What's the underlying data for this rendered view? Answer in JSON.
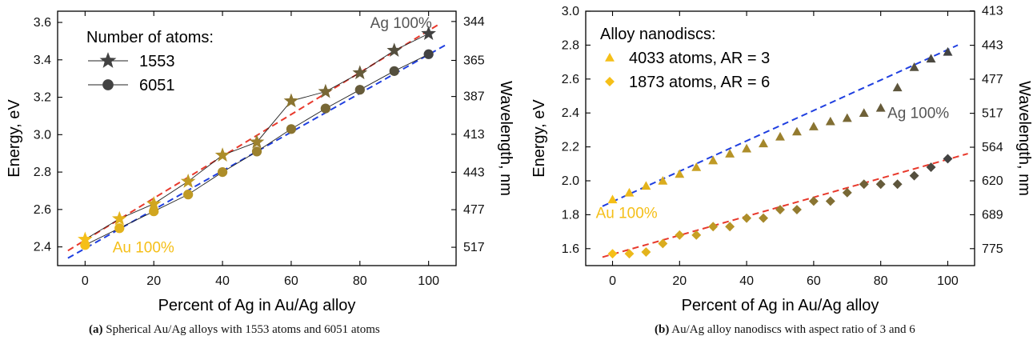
{
  "captions": [
    {
      "label": "(a)",
      "text": "Spherical Au/Ag alloys with 1553 atoms and 6051 atoms"
    },
    {
      "label": "(b)",
      "text": "Au/Ag alloy nanodiscs with aspect ratio of 3 and 6"
    }
  ],
  "chart_data": [
    {
      "type": "scatter",
      "id": "a",
      "xlabel": "Percent of Ag in Au/Ag alloy",
      "ylabel": "Energy, eV",
      "y2label": "Wavelength, nm",
      "xlim": [
        -8,
        108
      ],
      "ylim": [
        2.3,
        3.66
      ],
      "xticks": [
        0,
        20,
        40,
        60,
        80,
        100
      ],
      "yticks": [
        "2.4",
        "2.6",
        "2.8",
        "3.0",
        "3.2",
        "3.4",
        "3.6"
      ],
      "y2ticks": [
        {
          "label": "344",
          "energy": 3.605
        },
        {
          "label": "365",
          "energy": 3.397
        },
        {
          "label": "387",
          "energy": 3.204
        },
        {
          "label": "413",
          "energy": 3.002
        },
        {
          "label": "443",
          "energy": 2.799
        },
        {
          "label": "477",
          "energy": 2.599
        },
        {
          "label": "517",
          "energy": 2.398
        }
      ],
      "legend": {
        "title": "Number of atoms:",
        "position": "top-left"
      },
      "color_start": "#f5bf18",
      "color_end": "#424242",
      "series": [
        {
          "name": "1553",
          "marker": "star",
          "connected": true,
          "x": [
            0,
            10,
            20,
            30,
            40,
            50,
            60,
            70,
            80,
            90,
            100
          ],
          "y": [
            2.44,
            2.55,
            2.63,
            2.75,
            2.89,
            2.96,
            3.18,
            3.23,
            3.33,
            3.45,
            3.54
          ]
        },
        {
          "name": "6051",
          "marker": "circle",
          "connected": true,
          "x": [
            0,
            10,
            20,
            30,
            40,
            50,
            60,
            70,
            80,
            90,
            100
          ],
          "y": [
            2.41,
            2.5,
            2.59,
            2.68,
            2.8,
            2.91,
            3.03,
            3.14,
            3.24,
            3.34,
            3.43
          ]
        }
      ],
      "fit_lines": [
        {
          "color": "#e8392c",
          "x": [
            -5,
            103
          ],
          "y": [
            2.38,
            3.59
          ]
        },
        {
          "color": "#1f3fe0",
          "x": [
            -5,
            105
          ],
          "y": [
            2.34,
            3.48
          ]
        }
      ],
      "annotations": [
        {
          "text": "Ag 100%",
          "color": "#555555",
          "x": 83,
          "y": 3.57
        },
        {
          "text": "Au 100%",
          "color": "#f5bf18",
          "x": 8,
          "y": 2.37
        }
      ]
    },
    {
      "type": "scatter",
      "id": "b",
      "xlabel": "Percent of Ag in Au/Ag alloy",
      "ylabel": "Energy, eV",
      "y2label": "Wavelength, nm",
      "xlim": [
        -8,
        108
      ],
      "ylim": [
        1.5,
        3.0
      ],
      "xticks": [
        0,
        20,
        40,
        60,
        80,
        100
      ],
      "yticks": [
        "1.6",
        "1.8",
        "2.0",
        "2.2",
        "2.4",
        "2.6",
        "2.8",
        "3.0"
      ],
      "y2ticks": [
        {
          "label": "413",
          "energy": 3.002
        },
        {
          "label": "443",
          "energy": 2.799
        },
        {
          "label": "477",
          "energy": 2.599
        },
        {
          "label": "517",
          "energy": 2.398
        },
        {
          "label": "564",
          "energy": 2.198
        },
        {
          "label": "620",
          "energy": 2.0
        },
        {
          "label": "689",
          "energy": 1.8
        },
        {
          "label": "775",
          "energy": 1.6
        }
      ],
      "legend": {
        "title": "Alloy nanodiscs:",
        "position": "top-left"
      },
      "color_start": "#f5bf18",
      "color_end": "#424242",
      "series": [
        {
          "name": "4033 atoms, AR = 3",
          "marker": "triangle",
          "connected": false,
          "x": [
            0,
            5,
            10,
            15,
            20,
            25,
            30,
            35,
            40,
            45,
            50,
            55,
            60,
            65,
            70,
            75,
            80,
            85,
            90,
            95,
            100
          ],
          "y": [
            1.89,
            1.93,
            1.97,
            2.0,
            2.04,
            2.08,
            2.12,
            2.16,
            2.19,
            2.22,
            2.26,
            2.29,
            2.32,
            2.35,
            2.37,
            2.4,
            2.43,
            2.55,
            2.67,
            2.72,
            2.76
          ]
        },
        {
          "name": "1873 atoms, AR = 6",
          "marker": "diamond",
          "connected": false,
          "x": [
            0,
            5,
            10,
            15,
            20,
            25,
            30,
            35,
            40,
            45,
            50,
            55,
            60,
            65,
            70,
            75,
            80,
            85,
            90,
            95,
            100
          ],
          "y": [
            1.57,
            1.57,
            1.58,
            1.63,
            1.68,
            1.68,
            1.73,
            1.73,
            1.78,
            1.78,
            1.83,
            1.83,
            1.88,
            1.88,
            1.93,
            1.98,
            1.98,
            1.98,
            2.03,
            2.08,
            2.13
          ]
        }
      ],
      "fit_lines": [
        {
          "color": "#1f3fe0",
          "x": [
            -3,
            103
          ],
          "y": [
            1.85,
            2.8
          ]
        },
        {
          "color": "#e8392c",
          "x": [
            -3,
            106
          ],
          "y": [
            1.55,
            2.16
          ]
        }
      ],
      "annotations": [
        {
          "text": "Ag 100%",
          "color": "#555555",
          "x": 82,
          "y": 2.37
        },
        {
          "text": "Au 100%",
          "color": "#f5bf18",
          "x": -5,
          "y": 1.78
        }
      ]
    }
  ]
}
